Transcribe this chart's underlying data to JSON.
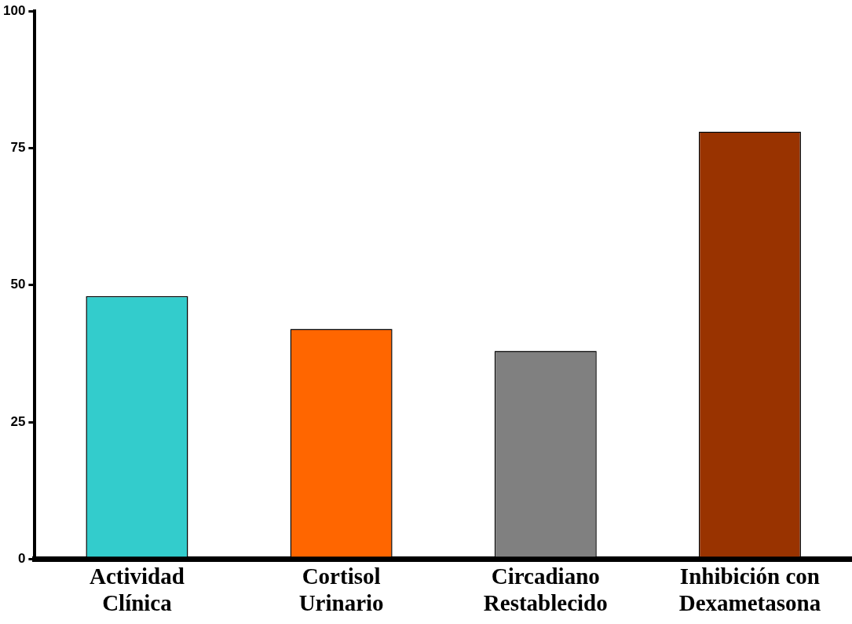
{
  "chart_data": {
    "type": "bar",
    "categories": [
      "Actividad Clínica",
      "Cortisol Urinario",
      "Circadiano Restablecido",
      "Inhibición con Dexametasona"
    ],
    "values": [
      48,
      42,
      38,
      78
    ],
    "colors": [
      "#33cccc",
      "#ff6600",
      "#808080",
      "#993300"
    ],
    "ylim": [
      0,
      100
    ],
    "yticks": [
      0,
      25,
      50,
      75,
      100
    ],
    "grid": false,
    "legend": false
  }
}
